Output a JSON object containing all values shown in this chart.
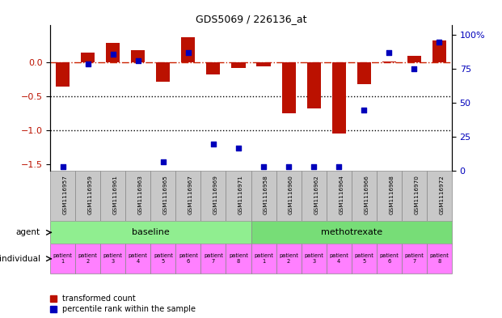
{
  "title": "GDS5069 / 226136_at",
  "samples": [
    "GSM1116957",
    "GSM1116959",
    "GSM1116961",
    "GSM1116963",
    "GSM1116965",
    "GSM1116967",
    "GSM1116969",
    "GSM1116971",
    "GSM1116958",
    "GSM1116960",
    "GSM1116962",
    "GSM1116964",
    "GSM1116966",
    "GSM1116968",
    "GSM1116970",
    "GSM1116972"
  ],
  "red_values": [
    -0.35,
    0.15,
    0.29,
    0.18,
    -0.28,
    0.38,
    -0.17,
    -0.08,
    -0.05,
    -0.75,
    -0.67,
    -1.05,
    -0.32,
    0.02,
    0.1,
    0.33
  ],
  "blue_values_pct": [
    3,
    79,
    86,
    81,
    7,
    87,
    20,
    17,
    3,
    3,
    3,
    3,
    45,
    87,
    75,
    95
  ],
  "ylim_left": [
    -1.6,
    0.55
  ],
  "ylim_right": [
    0,
    107
  ],
  "yticks_left": [
    0.0,
    -0.5,
    -1.0,
    -1.5
  ],
  "yticks_right": [
    0,
    25,
    50,
    75,
    100
  ],
  "dotted_lines": [
    -0.5,
    -1.0
  ],
  "agent_labels": [
    "baseline",
    "methotrexate"
  ],
  "agent_colors": [
    "#90EE90",
    "#77DD77"
  ],
  "agent_ranges": [
    [
      0,
      8
    ],
    [
      8,
      16
    ]
  ],
  "individual_labels": [
    "patient\n1",
    "patient\n2",
    "patient\n3",
    "patient\n4",
    "patient\n5",
    "patient\n6",
    "patient\n7",
    "patient\n8",
    "patient\n1",
    "patient\n2",
    "patient\n3",
    "patient\n4",
    "patient\n5",
    "patient\n6",
    "patient\n7",
    "patient\n8"
  ],
  "individual_cell_color": "#FF80FF",
  "gsm_cell_color": "#C8C8C8",
  "legend_red": "transformed count",
  "legend_blue": "percentile rank within the sample",
  "bar_width": 0.55,
  "red_color": "#BB1100",
  "blue_color": "#0000BB",
  "dash_color": "#CC2200"
}
